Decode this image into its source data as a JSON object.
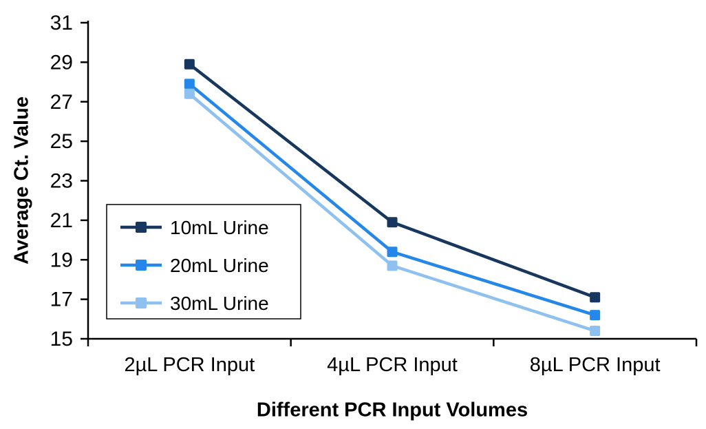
{
  "chart_data": {
    "type": "line",
    "title": "",
    "xlabel": "Different PCR Input Volumes",
    "ylabel": "Average Ct. Value",
    "categories": [
      "2µL PCR Input",
      "4µL PCR Input",
      "8µL PCR Input"
    ],
    "series": [
      {
        "name": "10mL Urine",
        "color": "#17375E",
        "values": [
          28.9,
          20.9,
          17.1
        ]
      },
      {
        "name": "20mL Urine",
        "color": "#2487E9",
        "values": [
          27.9,
          19.4,
          16.2
        ]
      },
      {
        "name": "30mL Urine",
        "color": "#8EC1F0",
        "values": [
          27.4,
          18.7,
          15.4
        ]
      }
    ],
    "ylim": [
      15,
      31
    ],
    "ytick_step": 2,
    "grid": false,
    "legend_position": "middle-left",
    "marker": "square",
    "axis_color": "#000000",
    "text_color": "#000000"
  }
}
